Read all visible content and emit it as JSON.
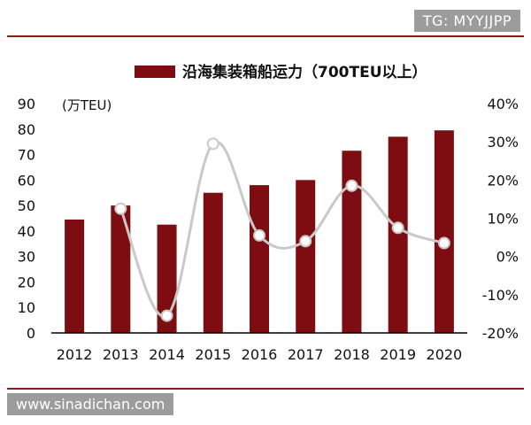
{
  "watermark_top": "TG: MYYJJPP",
  "watermark_bottom": "www.sinadichan.com",
  "colors": {
    "bar": "#7d0d10",
    "line": "#c9c9c9",
    "rule": "#8a1a1c"
  },
  "chart_data": {
    "type": "bar",
    "title": "",
    "legend": "沿海集装箱船运力（700TEU以上）",
    "legend_position": "top",
    "y_unit_label": "(万TEU)",
    "categories": [
      "2012",
      "2013",
      "2014",
      "2015",
      "2016",
      "2017",
      "2018",
      "2019",
      "2020"
    ],
    "series": [
      {
        "name": "沿海集装箱船运力（700TEU以上）",
        "type": "bar",
        "axis": "left",
        "values": [
          44.5,
          50,
          42.5,
          55,
          58,
          60,
          71.5,
          77,
          79.5
        ]
      },
      {
        "type": "line",
        "axis": "right",
        "values": [
          null,
          12.5,
          -15.5,
          29.5,
          5.5,
          4,
          18.5,
          7.5,
          3.5
        ]
      }
    ],
    "ylim_left": [
      0,
      90
    ],
    "yticks_left": [
      "0",
      "10",
      "20",
      "30",
      "40",
      "50",
      "60",
      "70",
      "80",
      "90"
    ],
    "ylim_right": [
      -20,
      40
    ],
    "yticks_right": [
      "-20%",
      "-10%",
      "0%",
      "10%",
      "20%",
      "30%",
      "40%"
    ],
    "grid": false
  }
}
